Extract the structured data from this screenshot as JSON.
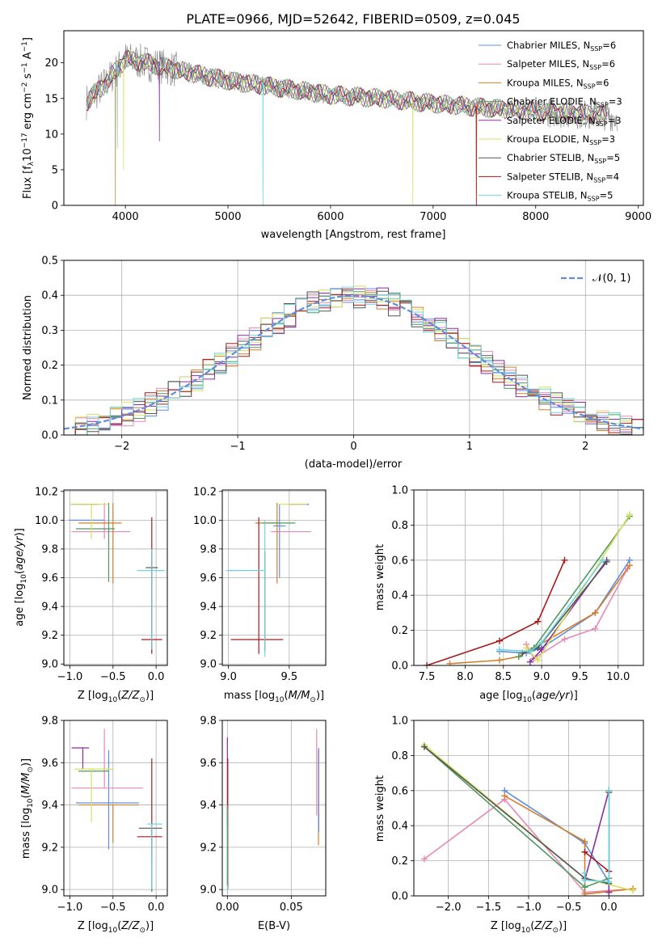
{
  "title": "PLATE=0966, MJD=52642, FIBERID=0509, z=0.045",
  "colors": {
    "chabrier_miles": "#5f8de0",
    "salpeter_miles": "#e589b5",
    "kroupa_miles": "#d27f2c",
    "chabrier_elodie": "#4e9a5f",
    "salpeter_elodie": "#8b2da3",
    "kroupa_elodie": "#d7e25c",
    "chabrier_stelib": "#555555",
    "salpeter_stelib": "#a51c1c",
    "kroupa_stelib": "#6fd3dc",
    "observed": "#7f7f7f",
    "normal": "#5f8de0"
  },
  "chart_data": [
    {
      "type": "line",
      "id": "spectrum",
      "xlabel": "wavelength [Angstrom, rest frame]",
      "ylabel_main": "Flux [f",
      "ylabel_sub1": "λ",
      "ylabel_mid": "10",
      "ylabel_sup1": "−17",
      "ylabel_rest": " erg cm",
      "ylabel_sup2": "−2",
      "ylabel_s": " s",
      "ylabel_sup3": "−1",
      "ylabel_a": " A",
      "ylabel_sup4": "−1",
      "ylabel_end": "]",
      "xlim": [
        3400,
        9050
      ],
      "ylim": [
        0,
        24.5
      ],
      "xticks": [
        4000,
        5000,
        6000,
        7000,
        8000,
        9000
      ],
      "yticks": [
        0,
        5,
        10,
        15,
        20
      ],
      "legend": [
        {
          "name": "Chabrier MILES",
          "nssp": "6",
          "key": "chabrier_miles"
        },
        {
          "name": "Salpeter MILES",
          "nssp": "6",
          "key": "salpeter_miles"
        },
        {
          "name": "Kroupa MILES",
          "nssp": "6",
          "key": "kroupa_miles"
        },
        {
          "name": "Chabrier ELODIE",
          "nssp": "3",
          "key": "chabrier_elodie"
        },
        {
          "name": "Salpeter ELODIE",
          "nssp": "3",
          "key": "salpeter_elodie"
        },
        {
          "name": "Kroupa ELODIE",
          "nssp": "3",
          "key": "kroupa_elodie"
        },
        {
          "name": "Chabrier STELIB",
          "nssp": "5",
          "key": "chabrier_stelib"
        },
        {
          "name": "Salpeter STELIB",
          "nssp": "4",
          "key": "salpeter_stelib"
        },
        {
          "name": "Kroupa STELIB",
          "nssp": "5",
          "key": "kroupa_stelib"
        }
      ],
      "legend_label": "N",
      "legend_sub": "SSP",
      "legend_placement": "top-right",
      "continuum": [
        [
          3620,
          14.5
        ],
        [
          3800,
          17
        ],
        [
          4000,
          20.5
        ],
        [
          4200,
          20
        ],
        [
          4500,
          19
        ],
        [
          5000,
          17.5
        ],
        [
          5500,
          16.5
        ],
        [
          6000,
          15.5
        ],
        [
          6500,
          15
        ],
        [
          7000,
          14.3
        ],
        [
          7500,
          13.7
        ],
        [
          8000,
          13.2
        ],
        [
          8500,
          12.8
        ],
        [
          8800,
          12.5
        ]
      ]
    },
    {
      "type": "line",
      "id": "residuals",
      "xlabel": "(data-model)/error",
      "ylabel": "Normed distribution",
      "xlim": [
        -2.5,
        2.5
      ],
      "ylim": [
        0,
        0.5
      ],
      "xticks": [
        -2,
        -1,
        0,
        1,
        2
      ],
      "yticks": [
        0.0,
        0.1,
        0.2,
        0.3,
        0.4,
        0.5
      ],
      "grid": true,
      "legend": "𝒩(0, 1)",
      "legend_placement": "top-right",
      "bin_width": 0.1
    },
    {
      "type": "scatter",
      "id": "age_vs_Z",
      "xlabel": "Z [log",
      "ylabel": "age  [log",
      "xlim": [
        -1.07,
        0.13
      ],
      "ylim": [
        8.99,
        10.21
      ],
      "xticks": [
        -1.0,
        -0.5,
        0.0
      ],
      "yticks": [
        9.0,
        9.2,
        9.4,
        9.6,
        9.8,
        10.0,
        10.2
      ],
      "grid": true,
      "points": [
        {
          "key": "chabrier_miles",
          "x": -0.8,
          "y": 10.0,
          "xerr": [
            0.21,
            0.21
          ],
          "yerr": [
            0.0,
            0.0
          ]
        },
        {
          "key": "salpeter_miles",
          "x": -0.6,
          "y": 9.92,
          "xerr": [
            0.38,
            0.3
          ],
          "yerr": [
            0.05,
            0.2
          ]
        },
        {
          "key": "kroupa_miles",
          "x": -0.5,
          "y": 9.98,
          "xerr": [
            0.4,
            0.1
          ],
          "yerr": [
            0.42,
            0.14
          ]
        },
        {
          "key": "chabrier_elodie",
          "x": -0.55,
          "y": 9.94,
          "xerr": [
            0.38,
            0.07
          ],
          "yerr": [
            0.37,
            0.18
          ]
        },
        {
          "key": "salpeter_elodie",
          "x": -0.85,
          "y": 10.11,
          "xerr": [
            0.13,
            0.18
          ],
          "yerr": [
            0.0,
            0.0
          ]
        },
        {
          "key": "kroupa_elodie",
          "x": -0.75,
          "y": 10.11,
          "xerr": [
            0.25,
            0.2
          ],
          "yerr": [
            0.24,
            0.0
          ]
        },
        {
          "key": "chabrier_stelib",
          "x": -0.05,
          "y": 9.67,
          "xerr": [
            0.07,
            0.07
          ],
          "yerr": [
            0.58,
            0.11
          ]
        },
        {
          "key": "salpeter_stelib",
          "x": -0.05,
          "y": 9.17,
          "xerr": [
            0.12,
            0.12
          ],
          "yerr": [
            0.1,
            0.85
          ]
        },
        {
          "key": "kroupa_stelib",
          "x": -0.05,
          "y": 9.65,
          "xerr": [
            0.17,
            0.15
          ],
          "yerr": [
            0.55,
            0.15
          ]
        }
      ]
    },
    {
      "type": "scatter",
      "id": "age_vs_mass",
      "xlabel": "mass [log",
      "xlim": [
        8.95,
        9.8
      ],
      "ylim": [
        8.99,
        10.21
      ],
      "xticks": [
        9.0,
        9.5
      ],
      "yticks": [
        9.0,
        9.2,
        9.4,
        9.6,
        9.8,
        10.0,
        10.2
      ],
      "grid": true,
      "points": [
        {
          "key": "chabrier_miles",
          "x": 9.42,
          "y": 9.96,
          "xerr": [
            0.05,
            0.05
          ],
          "yerr": [
            0.36,
            0.15
          ]
        },
        {
          "key": "salpeter_miles",
          "x": 9.48,
          "y": 9.92,
          "xerr": [
            0.13,
            0.2
          ],
          "yerr": [
            0.0,
            0.0
          ]
        },
        {
          "key": "kroupa_miles",
          "x": 9.4,
          "y": 9.98,
          "xerr": [
            0.18,
            0.0
          ],
          "yerr": [
            0.42,
            0.14
          ]
        },
        {
          "key": "chabrier_elodie",
          "x": 9.35,
          "y": 9.98,
          "xerr": [
            0.07,
            0.2
          ],
          "yerr": [
            0.0,
            0.0
          ]
        },
        {
          "key": "salpeter_elodie",
          "x": 9.62,
          "y": 10.11,
          "xerr": [
            0.12,
            0.04
          ],
          "yerr": [
            0.0,
            0.0
          ]
        },
        {
          "key": "kroupa_elodie",
          "x": 9.57,
          "y": 10.11,
          "xerr": [
            0.16,
            0.08
          ],
          "yerr": [
            0.0,
            0.0
          ]
        },
        {
          "key": "chabrier_stelib",
          "x": 9.3,
          "y": 9.67,
          "xerr": [
            0.0,
            0.0
          ],
          "yerr": [
            0.58,
            0.11
          ]
        },
        {
          "key": "salpeter_stelib",
          "x": 9.25,
          "y": 9.17,
          "xerr": [
            0.23,
            0.2
          ],
          "yerr": [
            0.1,
            0.85
          ]
        },
        {
          "key": "kroupa_stelib",
          "x": 9.3,
          "y": 9.65,
          "xerr": [
            0.32,
            0.0
          ],
          "yerr": [
            0.6,
            0.35
          ]
        }
      ]
    },
    {
      "type": "line",
      "id": "massweight_vs_age",
      "xlabel": "age  [log",
      "ylabel": "mass weight",
      "xlim": [
        7.33,
        10.33
      ],
      "ylim": [
        0,
        1
      ],
      "xticks": [
        7.5,
        8.0,
        8.5,
        9.0,
        9.5,
        10.0
      ],
      "yticks": [
        0.0,
        0.2,
        0.4,
        0.6,
        0.8,
        1.0
      ],
      "grid": true,
      "series": [
        {
          "key": "chabrier_miles",
          "x": [
            8.45,
            8.8,
            9.0,
            9.7,
            10.15
          ],
          "y": [
            0.08,
            0.07,
            0.1,
            0.3,
            0.6
          ]
        },
        {
          "key": "salpeter_miles",
          "x": [
            8.8,
            8.9,
            9.3,
            9.7,
            10.12
          ],
          "y": [
            0.12,
            0.04,
            0.15,
            0.21,
            0.55
          ]
        },
        {
          "key": "kroupa_miles",
          "x": [
            7.8,
            8.45,
            8.7,
            8.9,
            9.7,
            10.15
          ],
          "y": [
            0.01,
            0.03,
            0.05,
            0.1,
            0.3,
            0.57
          ]
        },
        {
          "key": "chabrier_elodie",
          "x": [
            8.7,
            8.9,
            10.15
          ],
          "y": [
            0.05,
            0.1,
            0.85
          ]
        },
        {
          "key": "salpeter_elodie",
          "x": [
            8.85,
            9.0,
            9.85
          ],
          "y": [
            0.02,
            0.09,
            0.6
          ]
        },
        {
          "key": "kroupa_elodie",
          "x": [
            8.8,
            8.95,
            10.15
          ],
          "y": [
            0.1,
            0.03,
            0.86
          ]
        },
        {
          "key": "chabrier_stelib",
          "x": [
            8.75,
            8.95,
            9.85
          ],
          "y": [
            0.07,
            0.1,
            0.59
          ]
        },
        {
          "key": "salpeter_stelib",
          "x": [
            7.5,
            8.45,
            8.95,
            9.3
          ],
          "y": [
            0.0,
            0.14,
            0.25,
            0.6
          ]
        },
        {
          "key": "kroupa_stelib",
          "x": [
            8.45,
            8.85,
            9.0,
            9.8
          ],
          "y": [
            0.09,
            0.08,
            0.13,
            0.6
          ]
        }
      ]
    },
    {
      "type": "scatter",
      "id": "mass_vs_Z",
      "xlabel": "Z [log",
      "ylabel": "mass [log",
      "xlim": [
        -1.07,
        0.13
      ],
      "ylim": [
        8.97,
        9.8
      ],
      "xticks": [
        -1.0,
        -0.5,
        0.0
      ],
      "yticks": [
        9.0,
        9.2,
        9.4,
        9.6,
        9.8
      ],
      "grid": true,
      "points": [
        {
          "key": "chabrier_miles",
          "x": -0.55,
          "y": 9.41,
          "xerr": [
            0.38,
            0.35
          ],
          "yerr": [
            0.22,
            0.25
          ]
        },
        {
          "key": "salpeter_miles",
          "x": -0.6,
          "y": 9.48,
          "xerr": [
            0.38,
            0.45
          ],
          "yerr": [
            0.0,
            0.28
          ]
        },
        {
          "key": "kroupa_miles",
          "x": -0.5,
          "y": 9.4,
          "xerr": [
            0.4,
            0.3
          ],
          "yerr": [
            0.18,
            0.0
          ]
        },
        {
          "key": "chabrier_elodie",
          "x": -0.7,
          "y": 9.56,
          "xerr": [
            0.2,
            0.15
          ],
          "yerr": [
            0.0,
            0.0
          ]
        },
        {
          "key": "salpeter_elodie",
          "x": -0.85,
          "y": 9.67,
          "xerr": [
            0.13,
            0.07
          ],
          "yerr": [
            0.1,
            0.0
          ]
        },
        {
          "key": "kroupa_elodie",
          "x": -0.75,
          "y": 9.57,
          "xerr": [
            0.2,
            0.25
          ],
          "yerr": [
            0.25,
            0.0
          ]
        },
        {
          "key": "chabrier_stelib",
          "x": -0.05,
          "y": 9.29,
          "xerr": [
            0.15,
            0.12
          ],
          "yerr": [
            0.3,
            0.0
          ]
        },
        {
          "key": "salpeter_stelib",
          "x": -0.05,
          "y": 9.25,
          "xerr": [
            0.17,
            0.12
          ],
          "yerr": [
            0.1,
            0.37
          ]
        },
        {
          "key": "kroupa_stelib",
          "x": -0.05,
          "y": 9.31,
          "xerr": [
            0.05,
            0.12
          ],
          "yerr": [
            0.31,
            0.0
          ]
        }
      ]
    },
    {
      "type": "scatter",
      "id": "mass_vs_EBV",
      "xlabel": "E(B-V)",
      "xlim": [
        -0.004,
        0.077
      ],
      "ylim": [
        8.97,
        9.8
      ],
      "xticks": [
        0.0,
        0.05
      ],
      "yticks": [
        9.0,
        9.2,
        9.4,
        9.6,
        9.8
      ],
      "grid": true,
      "points": [
        {
          "key": "salpeter_miles",
          "x": 0.0699,
          "y": 9.55,
          "xerr": [
            0.0,
            0.0
          ],
          "yerr": [
            0.2,
            0.21
          ]
        },
        {
          "key": "kroupa_miles",
          "x": 0.0713,
          "y": 9.4,
          "xerr": [
            0.0,
            0.0
          ],
          "yerr": [
            0.19,
            0.26
          ]
        },
        {
          "key": "chabrier_miles",
          "x": 0.0715,
          "y": 9.47,
          "xerr": [
            0.0,
            0.0
          ],
          "yerr": [
            0.2,
            0.2
          ]
        },
        {
          "key": "salpeter_elodie",
          "x": 0.0,
          "y": 9.55,
          "xerr": [
            0.0,
            0.0
          ],
          "yerr": [
            0.25,
            0.17
          ]
        },
        {
          "key": "salpeter_stelib",
          "x": 0.0003,
          "y": 9.35,
          "xerr": [
            0.0,
            0.0
          ],
          "yerr": [
            0.35,
            0.27
          ]
        },
        {
          "key": "kroupa_stelib",
          "x": 0.0001,
          "y": 9.2,
          "xerr": [
            0.0,
            0.0
          ],
          "yerr": [
            0.22,
            0.18
          ]
        },
        {
          "key": "chabrier_elodie",
          "x": 0.0,
          "y": 9.2,
          "xerr": [
            0.0,
            0.0
          ],
          "yerr": [
            0.18,
            0.2
          ]
        }
      ]
    },
    {
      "type": "line",
      "id": "massweight_vs_Z",
      "xlabel": "Z [log",
      "ylabel": "mass weight",
      "xlim": [
        -2.43,
        0.43
      ],
      "ylim": [
        0,
        1
      ],
      "xticks": [
        -2.0,
        -1.5,
        -1.0,
        -0.5,
        0.0
      ],
      "yticks": [
        0.0,
        0.2,
        0.4,
        0.6,
        0.8,
        1.0
      ],
      "grid": true,
      "series": [
        {
          "key": "chabrier_miles",
          "x": [
            -1.3,
            -0.3,
            0.0
          ],
          "y": [
            0.6,
            0.3,
            0.08
          ]
        },
        {
          "key": "salpeter_miles",
          "x": [
            -2.3,
            -1.3,
            -0.3,
            0.0,
            0.3
          ],
          "y": [
            0.21,
            0.55,
            0.02,
            0.03,
            0.04
          ]
        },
        {
          "key": "kroupa_miles",
          "x": [
            -1.3,
            -0.3,
            -0.3,
            0.3
          ],
          "y": [
            0.57,
            0.31,
            0.01,
            0.04
          ]
        },
        {
          "key": "chabrier_elodie",
          "x": [
            -2.3,
            -0.3,
            0.0
          ],
          "y": [
            0.85,
            0.05,
            0.1
          ]
        },
        {
          "key": "salpeter_elodie",
          "x": [
            -0.3,
            0.0,
            0.0
          ],
          "y": [
            0.09,
            0.6,
            0.02
          ]
        },
        {
          "key": "kroupa_elodie",
          "x": [
            -2.3,
            -0.3,
            0.3
          ],
          "y": [
            0.86,
            0.1,
            0.03
          ]
        },
        {
          "key": "chabrier_stelib",
          "x": [
            -2.3,
            -0.3,
            0.0,
            0.0
          ],
          "y": [
            0.85,
            0.1,
            0.07,
            0.59
          ]
        },
        {
          "key": "salpeter_stelib",
          "x": [
            -0.3,
            0.0,
            0.0
          ],
          "y": [
            0.25,
            0.14,
            0.6
          ]
        },
        {
          "key": "kroupa_stelib",
          "x": [
            -0.3,
            -0.3,
            0.0,
            0.0
          ],
          "y": [
            0.13,
            0.09,
            0.08,
            0.6
          ]
        }
      ]
    }
  ]
}
